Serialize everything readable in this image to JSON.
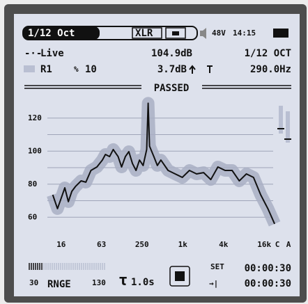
{
  "status_bar": {
    "mode": "1/12 Oct",
    "input": "XLR",
    "phantom": "48V",
    "time": "14:15"
  },
  "readout": {
    "live": "Live",
    "level": "104.9dB",
    "band": "1/12 OCT",
    "reference": "R1",
    "tolerance": "10",
    "deviation": "3.7dB",
    "frequency": "290.0Hz"
  },
  "result": "PASSED",
  "chart_data": {
    "type": "line",
    "xscale": "log",
    "x": [
      12,
      14.1,
      16,
      18.1,
      20.4,
      23,
      26,
      31.5,
      37,
      44,
      54,
      65,
      72,
      83,
      94,
      111,
      125,
      142,
      160,
      181,
      204,
      230,
      260,
      293,
      308,
      323,
      374,
      422,
      476,
      607,
      773,
      984,
      1254,
      1600,
      2037,
      2600,
      3310,
      4220,
      5370,
      6850,
      8730,
      11100,
      14200,
      18100,
      22800
    ],
    "series": [
      {
        "color": "#111111",
        "band_color": "#a9afc4",
        "values": [
          73.6,
          65.2,
          71.5,
          77.8,
          69.4,
          75.7,
          78.6,
          82,
          81.2,
          88.3,
          90.4,
          94.6,
          98,
          96.7,
          101,
          96.7,
          90.4,
          96.7,
          99.7,
          92.5,
          88.3,
          94.6,
          91.3,
          101,
          129,
          103,
          96.7,
          91.3,
          94.6,
          88.3,
          86.2,
          84.1,
          88.3,
          86.2,
          87,
          82.8,
          90.4,
          88.3,
          88.3,
          82,
          86.2,
          84.1,
          73.6,
          65.2,
          56
        ]
      }
    ],
    "xlim": [
      10,
      25000
    ],
    "ylim": [
      50,
      130
    ],
    "xticks": [
      16,
      63,
      250,
      {
        "value": 1000,
        "label": "1k"
      },
      {
        "value": 4000,
        "label": "4k"
      },
      {
        "value": 16000,
        "label": "16k"
      }
    ],
    "yticks": [
      60,
      80,
      100,
      120
    ],
    "ygrid": [
      60,
      70,
      80,
      90,
      100,
      110,
      120
    ],
    "weighting_labels": [
      "C",
      "A"
    ]
  },
  "footer": {
    "range_low": "30",
    "range_label": "RNGE",
    "range_high": "130",
    "time_constant": "1.0s",
    "set_label": "SET",
    "set_time": "00:00:30",
    "elapsed_time": "00:00:30"
  }
}
